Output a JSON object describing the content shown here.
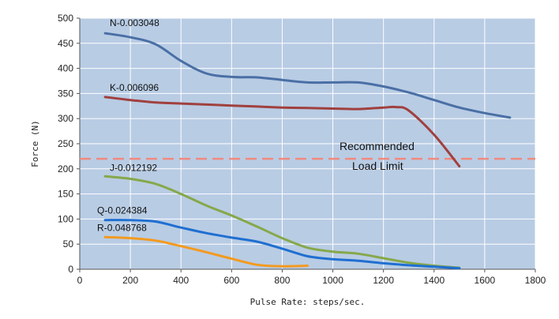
{
  "chart_data": {
    "type": "line",
    "xlabel": "Pulse Rate: steps/sec.",
    "ylabel": "Force (N)",
    "xlim": [
      0,
      1800
    ],
    "ylim": [
      0,
      500
    ],
    "xticks": [
      0,
      200,
      400,
      600,
      800,
      1000,
      1200,
      1400,
      1600,
      1800
    ],
    "yticks": [
      0,
      50,
      100,
      150,
      200,
      250,
      300,
      350,
      400,
      450,
      500
    ],
    "grid": true,
    "background": "#b8cce4",
    "series": [
      {
        "name": "N-0.003048",
        "color": "#4a6fa5",
        "x": [
          100,
          200,
          300,
          400,
          500,
          600,
          700,
          800,
          900,
          1000,
          1100,
          1200,
          1300,
          1400,
          1500,
          1600,
          1700
        ],
        "y": [
          470,
          462,
          448,
          415,
          390,
          383,
          382,
          377,
          372,
          372,
          372,
          364,
          352,
          337,
          322,
          311,
          302
        ]
      },
      {
        "name": "K-0.006096",
        "color": "#a0403e",
        "x": [
          100,
          200,
          300,
          400,
          500,
          600,
          700,
          800,
          900,
          1000,
          1100,
          1200,
          1250,
          1300,
          1400,
          1500
        ],
        "y": [
          343,
          337,
          332,
          330,
          328,
          326,
          324,
          322,
          321,
          320,
          319,
          322,
          323,
          316,
          268,
          205
        ]
      },
      {
        "name": "J-0.012192",
        "color": "#86a84a",
        "x": [
          100,
          200,
          300,
          400,
          500,
          600,
          700,
          800,
          900,
          1000,
          1100,
          1200,
          1300,
          1400,
          1500
        ],
        "y": [
          185,
          180,
          170,
          150,
          127,
          107,
          85,
          62,
          43,
          35,
          31,
          22,
          13,
          7,
          3
        ]
      },
      {
        "name": "Q-0.024384",
        "color": "#1f6fd1",
        "x": [
          100,
          200,
          300,
          400,
          500,
          600,
          700,
          800,
          900,
          1000,
          1100,
          1200,
          1300,
          1400,
          1500
        ],
        "y": [
          98,
          98,
          95,
          83,
          72,
          63,
          55,
          41,
          26,
          20,
          17,
          12,
          8,
          5,
          2
        ]
      },
      {
        "name": "R-0.048768",
        "color": "#f39a1f",
        "x": [
          100,
          200,
          300,
          400,
          500,
          600,
          700,
          800,
          900
        ],
        "y": [
          64,
          62,
          57,
          46,
          34,
          21,
          9,
          6,
          7
        ]
      }
    ],
    "reference_line": {
      "y": 220,
      "color": "#ef8a80",
      "label_line1": "Recommended",
      "label_line2": "Load Limit"
    }
  }
}
